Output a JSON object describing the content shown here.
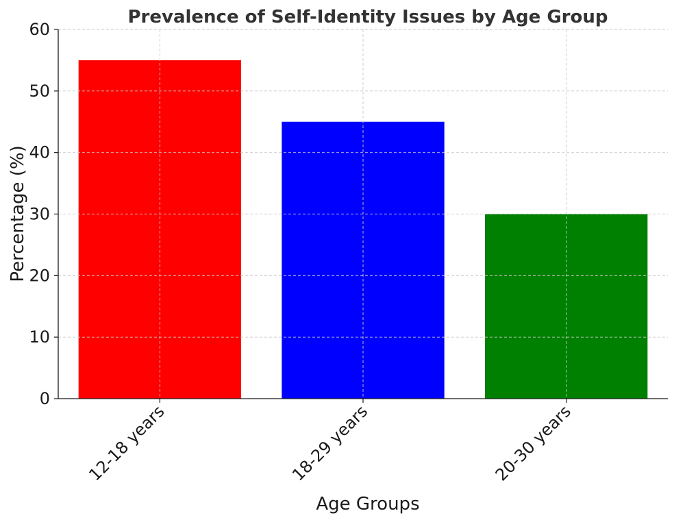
{
  "chart_data": {
    "type": "bar",
    "title": "Prevalence of Self-Identity Issues by Age Group",
    "xlabel": "Age Groups",
    "ylabel": "Percentage (%)",
    "categories": [
      "12-18 years",
      "18-29 years",
      "20-30 years"
    ],
    "values": [
      55,
      45,
      30
    ],
    "colors": [
      "#ff0000",
      "#0000ff",
      "#008000"
    ],
    "ylim": [
      0,
      60
    ],
    "yticks": [
      0,
      10,
      20,
      30,
      40,
      50,
      60
    ],
    "grid": true,
    "legend": "none"
  }
}
